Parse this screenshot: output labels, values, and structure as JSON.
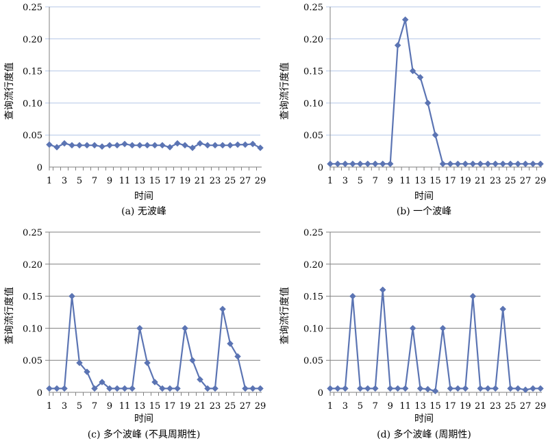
{
  "figure": {
    "charts": [
      {
        "type": "line",
        "caption": "(a) 无波峰",
        "xlabel": "时间",
        "ylabel": "查询流行度值",
        "ylim": [
          0,
          0.25
        ],
        "yticks": [
          "0",
          "0.05",
          "0.10",
          "0.15",
          "0.20",
          "0.25"
        ],
        "grid_color": "#b4c7e7",
        "series_color": "#5b74b3",
        "marker": "diamond",
        "x": [
          1,
          2,
          3,
          4,
          5,
          6,
          7,
          8,
          9,
          10,
          11,
          12,
          13,
          14,
          15,
          16,
          17,
          18,
          19,
          20,
          21,
          22,
          23,
          24,
          25,
          26,
          27,
          28,
          29
        ],
        "xtick_labels": [
          "1",
          "3",
          "5",
          "7",
          "9",
          "11",
          "13",
          "15",
          "17",
          "19",
          "21",
          "23",
          "25",
          "27",
          "29"
        ],
        "values": [
          0.035,
          0.031,
          0.037,
          0.034,
          0.034,
          0.034,
          0.034,
          0.032,
          0.034,
          0.034,
          0.036,
          0.034,
          0.034,
          0.034,
          0.034,
          0.034,
          0.031,
          0.037,
          0.034,
          0.03,
          0.037,
          0.034,
          0.034,
          0.034,
          0.034,
          0.035,
          0.035,
          0.036,
          0.03
        ]
      },
      {
        "type": "line",
        "caption": "(b) 一个波峰",
        "xlabel": "时间",
        "ylabel": "查询流行度值",
        "ylim": [
          0,
          0.25
        ],
        "yticks": [
          "0",
          "0.05",
          "0.10",
          "0.15",
          "0.20",
          "0.25"
        ],
        "grid_color": "#b4c7e7",
        "series_color": "#5b74b3",
        "marker": "diamond",
        "x": [
          1,
          2,
          3,
          4,
          5,
          6,
          7,
          8,
          9,
          10,
          11,
          12,
          13,
          14,
          15,
          16,
          17,
          18,
          19,
          20,
          21,
          22,
          23,
          24,
          25,
          26,
          27,
          28,
          29
        ],
        "xtick_labels": [
          "1",
          "3",
          "5",
          "7",
          "9",
          "11",
          "13",
          "15",
          "17",
          "19",
          "21",
          "23",
          "25",
          "27",
          "29"
        ],
        "values": [
          0.005,
          0.005,
          0.005,
          0.005,
          0.005,
          0.005,
          0.005,
          0.005,
          0.005,
          0.19,
          0.23,
          0.15,
          0.14,
          0.1,
          0.05,
          0.005,
          0.005,
          0.005,
          0.005,
          0.005,
          0.005,
          0.005,
          0.005,
          0.005,
          0.005,
          0.005,
          0.005,
          0.005,
          0.005
        ]
      },
      {
        "type": "line",
        "caption": "(c) 多个波峰 (不具周期性)",
        "xlabel": "时间",
        "ylabel": "查询流行度值",
        "ylim": [
          0,
          0.25
        ],
        "yticks": [
          "0",
          "0.05",
          "0.10",
          "0.15",
          "0.20",
          "0.25"
        ],
        "grid_color": "#7f7f7f",
        "series_color": "#5b74b3",
        "marker": "diamond",
        "x": [
          1,
          2,
          3,
          4,
          5,
          6,
          7,
          8,
          9,
          10,
          11,
          12,
          13,
          14,
          15,
          16,
          17,
          18,
          19,
          20,
          21,
          22,
          23,
          24,
          25,
          26,
          27,
          28,
          29
        ],
        "xtick_labels": [
          "1",
          "3",
          "5",
          "7",
          "9",
          "11",
          "13",
          "15",
          "17",
          "19",
          "21",
          "23",
          "25",
          "27",
          "29"
        ],
        "values": [
          0.006,
          0.006,
          0.006,
          0.15,
          0.046,
          0.032,
          0.006,
          0.016,
          0.006,
          0.006,
          0.006,
          0.006,
          0.1,
          0.046,
          0.016,
          0.006,
          0.006,
          0.006,
          0.1,
          0.05,
          0.02,
          0.006,
          0.006,
          0.13,
          0.076,
          0.056,
          0.006,
          0.006,
          0.006
        ]
      },
      {
        "type": "line",
        "caption": "(d) 多个波峰 (周期性)",
        "xlabel": "时间",
        "ylabel": "查询流行度值",
        "ylim": [
          0,
          0.25
        ],
        "yticks": [
          "0",
          "0.05",
          "0.10",
          "0.15",
          "0.20",
          "0.25"
        ],
        "grid_color": "#7f7f7f",
        "series_color": "#5b74b3",
        "marker": "diamond",
        "x": [
          1,
          2,
          3,
          4,
          5,
          6,
          7,
          8,
          9,
          10,
          11,
          12,
          13,
          14,
          15,
          16,
          17,
          18,
          19,
          20,
          21,
          22,
          23,
          24,
          25,
          26,
          27,
          28,
          29
        ],
        "xtick_labels": [
          "1",
          "3",
          "5",
          "7",
          "9",
          "11",
          "13",
          "15",
          "17",
          "19",
          "21",
          "23",
          "25",
          "27",
          "29"
        ],
        "values": [
          0.006,
          0.006,
          0.006,
          0.15,
          0.006,
          0.006,
          0.006,
          0.16,
          0.006,
          0.006,
          0.006,
          0.1,
          0.006,
          0.005,
          0.002,
          0.1,
          0.006,
          0.006,
          0.006,
          0.15,
          0.006,
          0.006,
          0.006,
          0.13,
          0.006,
          0.006,
          0.004,
          0.006,
          0.006
        ]
      }
    ]
  },
  "chart_data": [
    {
      "type": "line",
      "title": "(a) 无波峰",
      "xlabel": "时间",
      "ylabel": "查询流行度值",
      "ylim": [
        0,
        0.25
      ],
      "x": [
        1,
        2,
        3,
        4,
        5,
        6,
        7,
        8,
        9,
        10,
        11,
        12,
        13,
        14,
        15,
        16,
        17,
        18,
        19,
        20,
        21,
        22,
        23,
        24,
        25,
        26,
        27,
        28,
        29
      ],
      "values": [
        0.035,
        0.031,
        0.037,
        0.034,
        0.034,
        0.034,
        0.034,
        0.032,
        0.034,
        0.034,
        0.036,
        0.034,
        0.034,
        0.034,
        0.034,
        0.034,
        0.031,
        0.037,
        0.034,
        0.03,
        0.037,
        0.034,
        0.034,
        0.034,
        0.034,
        0.035,
        0.035,
        0.036,
        0.03
      ],
      "grid": true
    },
    {
      "type": "line",
      "title": "(b) 一个波峰",
      "xlabel": "时间",
      "ylabel": "查询流行度值",
      "ylim": [
        0,
        0.25
      ],
      "x": [
        1,
        2,
        3,
        4,
        5,
        6,
        7,
        8,
        9,
        10,
        11,
        12,
        13,
        14,
        15,
        16,
        17,
        18,
        19,
        20,
        21,
        22,
        23,
        24,
        25,
        26,
        27,
        28,
        29
      ],
      "values": [
        0.005,
        0.005,
        0.005,
        0.005,
        0.005,
        0.005,
        0.005,
        0.005,
        0.005,
        0.19,
        0.23,
        0.15,
        0.14,
        0.1,
        0.05,
        0.005,
        0.005,
        0.005,
        0.005,
        0.005,
        0.005,
        0.005,
        0.005,
        0.005,
        0.005,
        0.005,
        0.005,
        0.005,
        0.005
      ],
      "grid": true
    },
    {
      "type": "line",
      "title": "(c) 多个波峰 (不具周期性)",
      "xlabel": "时间",
      "ylabel": "查询流行度值",
      "ylim": [
        0,
        0.25
      ],
      "x": [
        1,
        2,
        3,
        4,
        5,
        6,
        7,
        8,
        9,
        10,
        11,
        12,
        13,
        14,
        15,
        16,
        17,
        18,
        19,
        20,
        21,
        22,
        23,
        24,
        25,
        26,
        27,
        28,
        29
      ],
      "values": [
        0.006,
        0.006,
        0.006,
        0.15,
        0.046,
        0.032,
        0.006,
        0.016,
        0.006,
        0.006,
        0.006,
        0.006,
        0.1,
        0.046,
        0.016,
        0.006,
        0.006,
        0.006,
        0.1,
        0.05,
        0.02,
        0.006,
        0.006,
        0.13,
        0.076,
        0.056,
        0.006,
        0.006,
        0.006
      ],
      "grid": true
    },
    {
      "type": "line",
      "title": "(d) 多个波峰 (周期性)",
      "xlabel": "时间",
      "ylabel": "查询流行度值",
      "ylim": [
        0,
        0.25
      ],
      "x": [
        1,
        2,
        3,
        4,
        5,
        6,
        7,
        8,
        9,
        10,
        11,
        12,
        13,
        14,
        15,
        16,
        17,
        18,
        19,
        20,
        21,
        22,
        23,
        24,
        25,
        26,
        27,
        28,
        29
      ],
      "values": [
        0.006,
        0.006,
        0.006,
        0.15,
        0.006,
        0.006,
        0.006,
        0.16,
        0.006,
        0.006,
        0.006,
        0.1,
        0.006,
        0.005,
        0.002,
        0.1,
        0.006,
        0.006,
        0.006,
        0.15,
        0.006,
        0.006,
        0.006,
        0.13,
        0.006,
        0.006,
        0.004,
        0.006,
        0.006
      ],
      "grid": true
    }
  ]
}
